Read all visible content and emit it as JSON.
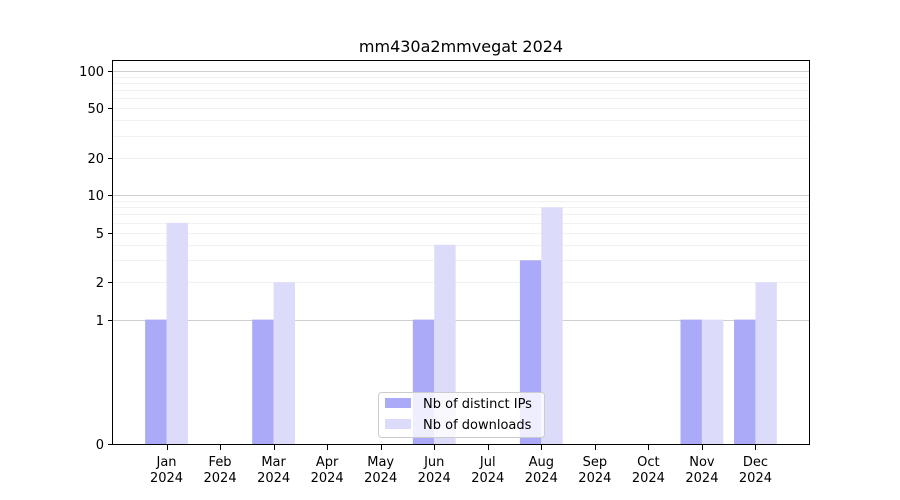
{
  "chart_data": {
    "type": "bar",
    "title": "mm430a2mmvegat 2024",
    "xlabel": "",
    "ylabel": "",
    "yscale": "symlog",
    "ylim": [
      0,
      120
    ],
    "yticks": [
      0,
      1,
      2,
      5,
      10,
      20,
      50,
      100
    ],
    "grid": true,
    "legend_position": "lower-center",
    "categories": [
      [
        "Jan",
        "2024"
      ],
      [
        "Feb",
        "2024"
      ],
      [
        "Mar",
        "2024"
      ],
      [
        "Apr",
        "2024"
      ],
      [
        "May",
        "2024"
      ],
      [
        "Jun",
        "2024"
      ],
      [
        "Jul",
        "2024"
      ],
      [
        "Aug",
        "2024"
      ],
      [
        "Sep",
        "2024"
      ],
      [
        "Oct",
        "2024"
      ],
      [
        "Nov",
        "2024"
      ],
      [
        "Dec",
        "2024"
      ]
    ],
    "series": [
      {
        "name": "Nb of distinct IPs",
        "color": "#aaaaf8",
        "values": [
          1,
          0,
          1,
          0,
          0,
          1,
          0,
          3,
          0,
          0,
          1,
          1
        ]
      },
      {
        "name": "Nb of downloads",
        "color": "#dcdcfa",
        "values": [
          6,
          0,
          2,
          0,
          0,
          4,
          0,
          8,
          0,
          0,
          1,
          2
        ]
      }
    ]
  }
}
